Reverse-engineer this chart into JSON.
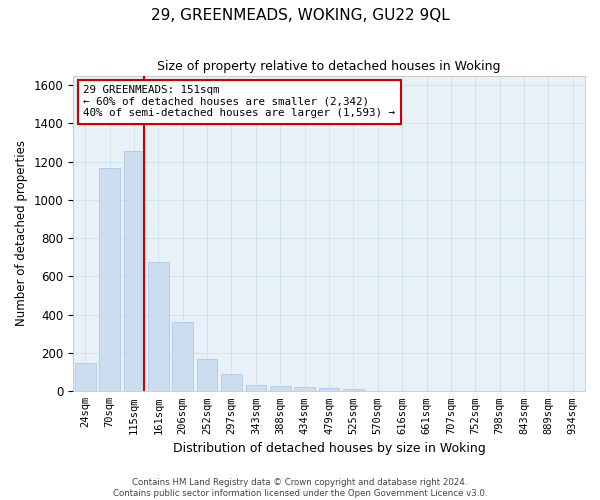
{
  "title": "29, GREENMEADS, WOKING, GU22 9QL",
  "subtitle": "Size of property relative to detached houses in Woking",
  "xlabel": "Distribution of detached houses by size in Woking",
  "ylabel": "Number of detached properties",
  "categories": [
    "24sqm",
    "70sqm",
    "115sqm",
    "161sqm",
    "206sqm",
    "252sqm",
    "297sqm",
    "343sqm",
    "388sqm",
    "434sqm",
    "479sqm",
    "525sqm",
    "570sqm",
    "616sqm",
    "661sqm",
    "707sqm",
    "752sqm",
    "798sqm",
    "843sqm",
    "889sqm",
    "934sqm"
  ],
  "values": [
    148,
    1165,
    1255,
    675,
    362,
    170,
    90,
    35,
    28,
    20,
    18,
    10,
    0,
    0,
    0,
    0,
    0,
    0,
    0,
    0,
    0
  ],
  "bar_color": "#ccddf0",
  "bar_edge_color": "#a8c4e0",
  "vline_color": "#cc0000",
  "annotation_text": "29 GREENMEADS: 151sqm\n← 60% of detached houses are smaller (2,342)\n40% of semi-detached houses are larger (1,593) →",
  "annotation_box_color": "#ffffff",
  "annotation_box_edge": "#cc0000",
  "ylim": [
    0,
    1650
  ],
  "yticks": [
    0,
    200,
    400,
    600,
    800,
    1000,
    1200,
    1400,
    1600
  ],
  "grid_color": "#d0e4f0",
  "bg_color": "#e8f0f8",
  "footer1": "Contains HM Land Registry data © Crown copyright and database right 2024.",
  "footer2": "Contains public sector information licensed under the Open Government Licence v3.0."
}
